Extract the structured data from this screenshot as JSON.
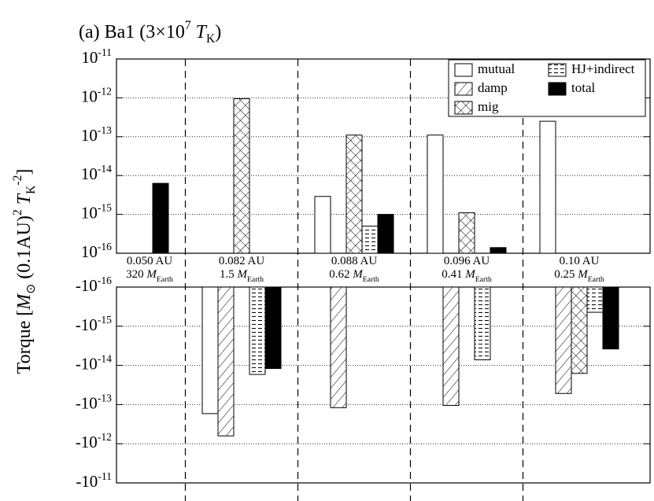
{
  "chart_data": {
    "type": "bar",
    "log_scale": true,
    "grid": true,
    "legend": "upper right",
    "title": "(a) Ba1 (3×10^{7} *T*_{K})",
    "ylabel": "Torque [*M*_{⊙} (0.1AU)^{2} *T*_{K}^{-2}]",
    "categories": [
      "0.050 AU",
      "0.082 AU",
      "0.088 AU",
      "0.096 AU",
      "0.10 AU"
    ],
    "category_masses": [
      "320 *M*_{Earth}",
      "1.5 *M*_{Earth}",
      "0.62 *M*_{Earth}",
      "0.41 *M*_{Earth}",
      "0.25 *M*_{Earth}"
    ],
    "panels": [
      {
        "ylim": [
          1e-16,
          1e-11
        ],
        "yticks": [
          {
            "value": 1e-16,
            "label": "10^{-16}"
          },
          {
            "value": 1e-15,
            "label": "10^{-15}"
          },
          {
            "value": 1e-14,
            "label": "10^{-14}"
          },
          {
            "value": 1e-13,
            "label": "10^{-13}"
          },
          {
            "value": 1e-12,
            "label": "10^{-12}"
          },
          {
            "value": 1e-11,
            "label": "10^{-11}"
          }
        ]
      },
      {
        "ylim": [
          -1e-16,
          -1e-11
        ],
        "yticks": [
          {
            "value": -1e-16,
            "label": "-10^{-16}"
          },
          {
            "value": -1e-15,
            "label": "-10^{-15}"
          },
          {
            "value": -1e-14,
            "label": "-10^{-14}"
          },
          {
            "value": -1e-13,
            "label": "-10^{-13}"
          },
          {
            "value": -1e-12,
            "label": "-10^{-12}"
          },
          {
            "value": -1e-11,
            "label": "-10^{-11}"
          }
        ]
      }
    ],
    "series": [
      {
        "name": "mutual",
        "color": "#ffffff",
        "values": [
          null,
          -1.7e-13,
          2.9e-15,
          1.1e-13,
          2.5e-13
        ]
      },
      {
        "name": "damp",
        "color": "#ffffff",
        "pattern": "hatch",
        "values": [
          null,
          -6.3e-13,
          -1.2e-13,
          -1.05e-13,
          -5.2e-14
        ]
      },
      {
        "name": "mig",
        "color": "#ffffff",
        "pattern": "crosshatch",
        "values": [
          null,
          9.5e-13,
          1.1e-13,
          1.1e-15,
          -1.6e-14
        ]
      },
      {
        "name": "HJ+indirect",
        "color": "#ffffff",
        "pattern": "dashes",
        "values": [
          null,
          -1.7e-14,
          5e-16,
          -7.2e-15,
          -4.4e-16
        ]
      },
      {
        "name": "total",
        "color": "#000000",
        "values": [
          6.3e-15,
          -1.2e-14,
          1e-15,
          1.4e-16,
          -3.8e-15
        ]
      }
    ]
  }
}
